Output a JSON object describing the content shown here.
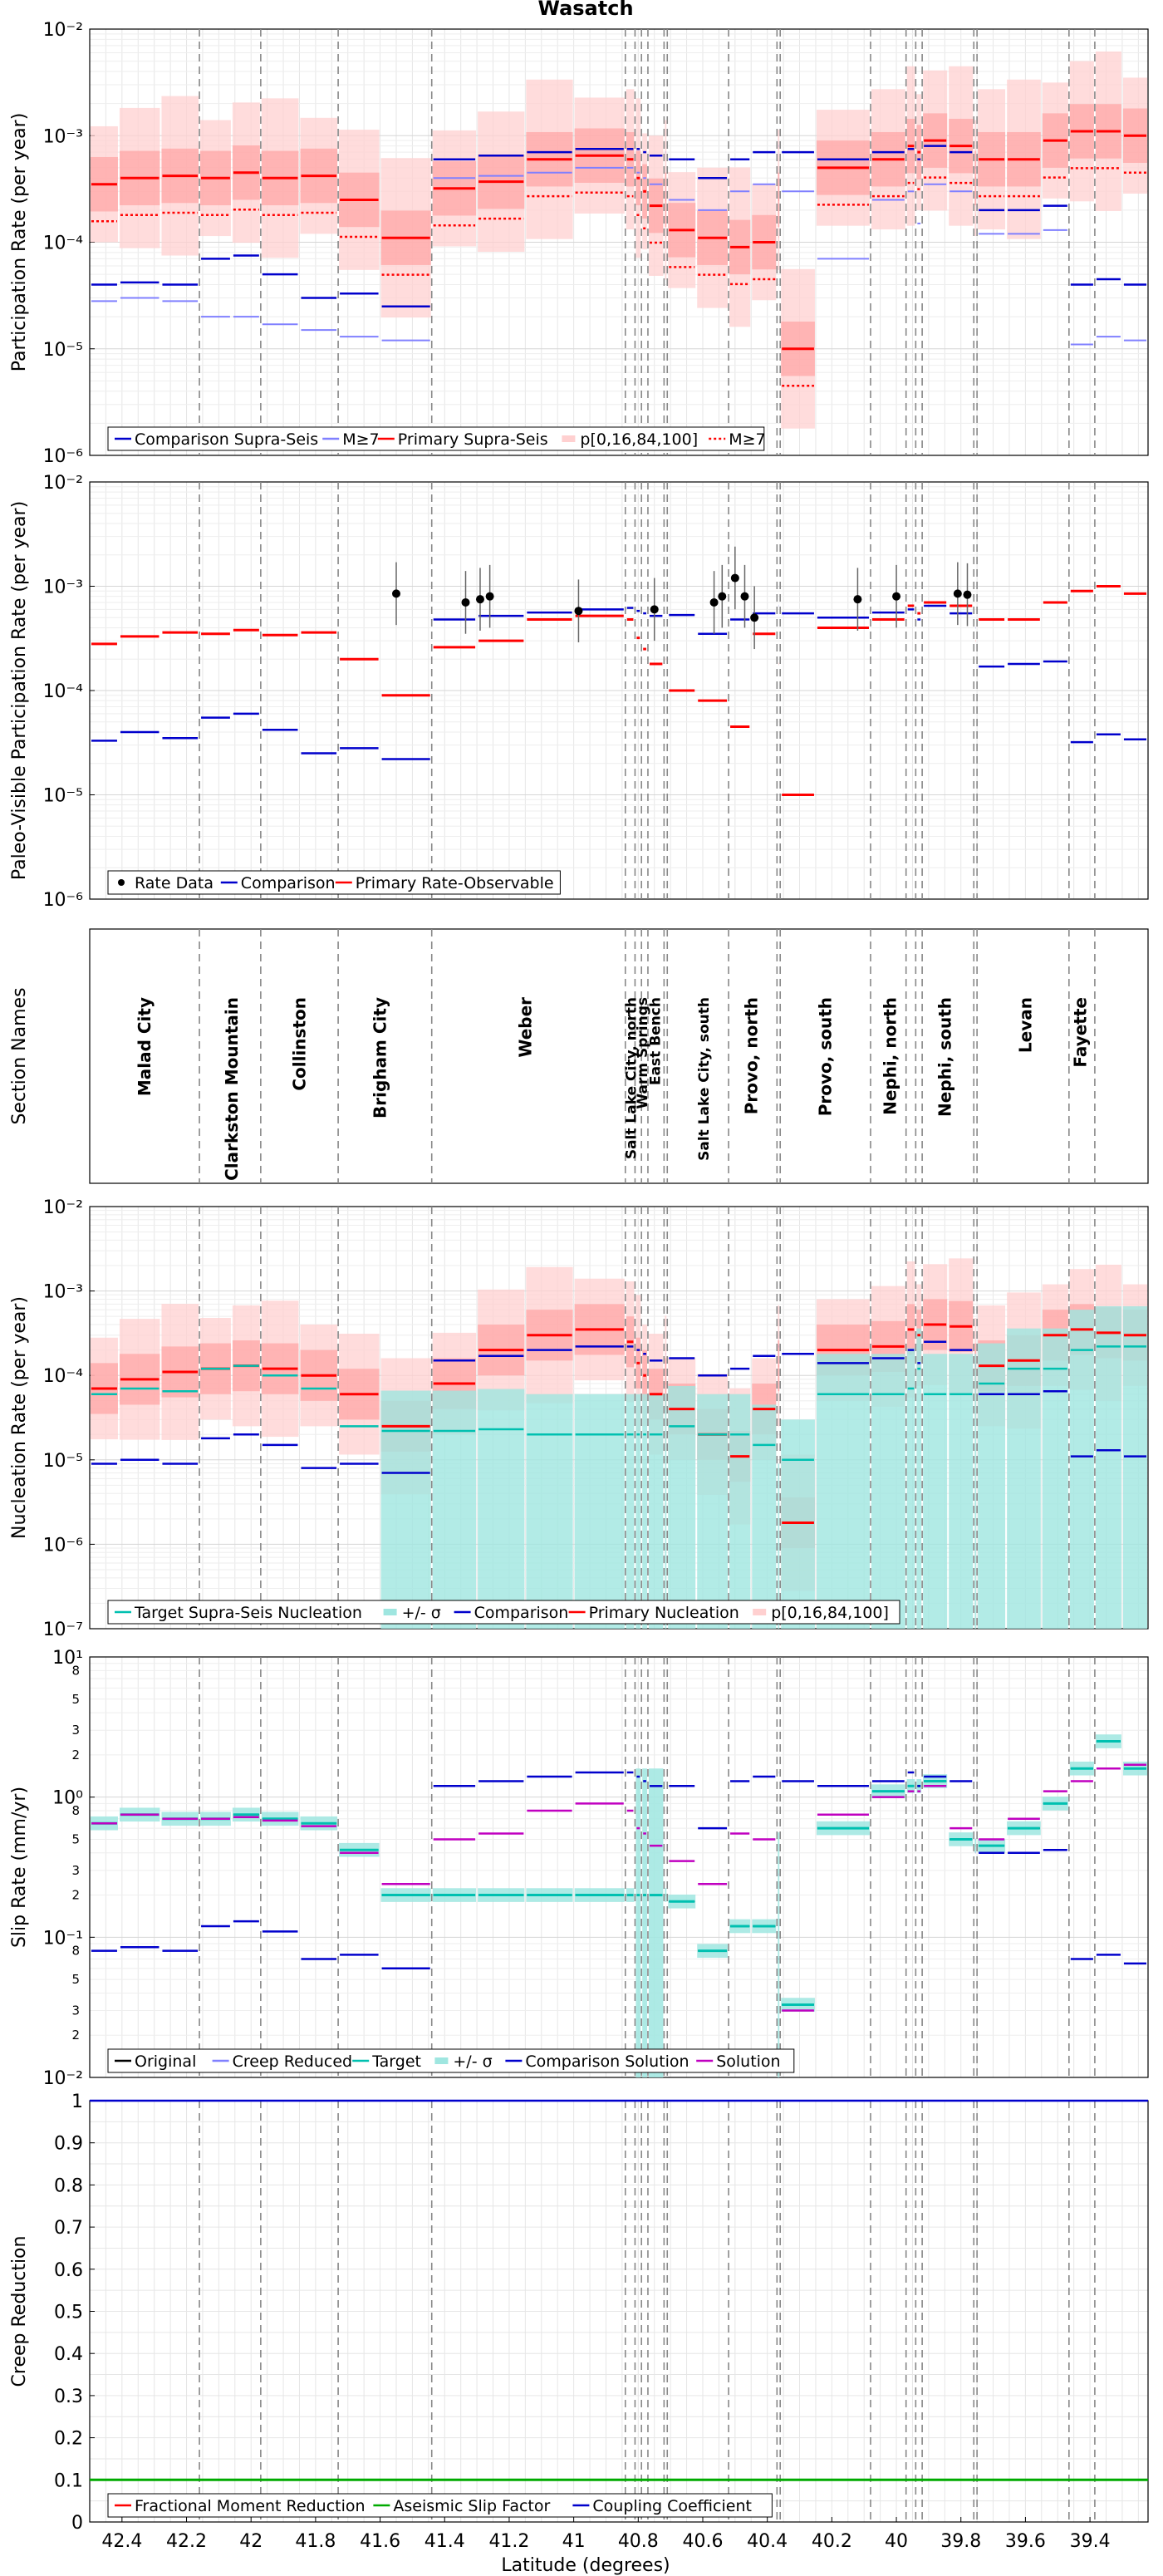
{
  "title": "Wasatch",
  "xlabel": "Latitude (degrees)",
  "xlim": [
    42.5,
    39.22
  ],
  "xticks": [
    42.4,
    42.2,
    42,
    41.8,
    41.6,
    41.4,
    41.2,
    41,
    40.8,
    40.6,
    40.4,
    40.2,
    40,
    39.8,
    39.6,
    39.4
  ],
  "section_boundaries": [
    42.16,
    41.97,
    41.73,
    41.44,
    40.84,
    40.81,
    40.79,
    40.77,
    40.72,
    40.71,
    40.52,
    40.37,
    40.36,
    40.08,
    39.97,
    39.94,
    39.92,
    39.76,
    39.75,
    39.465,
    39.385
  ],
  "section_names": [
    "Malad City",
    "Clarkston Mountain",
    "Collinston",
    "Brigham City",
    "Weber",
    "Salt Lake City, north",
    "Warm Springs",
    "East Bench",
    "Salt Lake City, south",
    "Provo, north",
    "Provo, south",
    "Nephi, north",
    "Nephi, south",
    "Levan",
    "Fayette"
  ],
  "colors": {
    "primary": "#ff0000",
    "comparison": "#0000cc",
    "comparison_m7": "#8080ff",
    "band_red_outer": "#ffd0d0",
    "band_red_inner": "#ffa3a3",
    "target": "#00c0b0",
    "target_band": "#9fe6e0",
    "solution": "#c000c0",
    "original": "#000000",
    "aseismic": "#00aa00",
    "coupling": "#0000cc",
    "grid": "#e6e6e6",
    "boundary": "#888888"
  },
  "chart_data": [
    {
      "id": "participation",
      "type": "line",
      "scale": "log",
      "ylabel": "Participation Rate (per year)",
      "ylim": [
        1e-06,
        0.01
      ],
      "ytick_labels": [
        "10⁻⁶",
        "10⁻⁵",
        "10⁻⁴",
        "10⁻³",
        "10⁻²"
      ],
      "legend_position": "bottom-left",
      "legend": [
        "Comparison Supra-Seis",
        "M≥7",
        "Primary Supra-Seis",
        "p[0,16,84,100]",
        "M≥7"
      ],
      "series": [
        {
          "name": "Comparison Supra-Seis",
          "values": [
            4e-05,
            4.2e-05,
            4e-05,
            7e-05,
            7.5e-05,
            5e-05,
            3e-05,
            3.3e-05,
            2.5e-05,
            0.0006,
            0.00065,
            0.0007,
            0.00075,
            0.00075,
            0.00075,
            0.0007,
            0.00065,
            0.0007,
            0.0006,
            0.0004,
            0.0006,
            0.0007,
            0.0008,
            0.0007,
            0.0006,
            0.0007,
            0.00075,
            0.0006,
            0.0008,
            0.0007,
            0.0005,
            0.0002,
            0.0002,
            0.00022,
            4e-05,
            4.5e-05,
            4e-05
          ]
        },
        {
          "name": "M≥7",
          "values": [
            2.8e-05,
            3e-05,
            2.8e-05,
            2e-05,
            2e-05,
            1.7e-05,
            1.5e-05,
            1.3e-05,
            1.2e-05,
            0.0004,
            0.00042,
            0.00045,
            0.0005,
            0.0005,
            0.00045,
            0.0004,
            0.00035,
            0.0003,
            0.00025,
            0.0002,
            0.0003,
            0.00035,
            0.0004,
            0.0003,
            7e-05,
            0.00025,
            0.0003,
            0.00015,
            0.00035,
            0.0003,
            0.00025,
            0.00012,
            0.00012,
            0.00013,
            1.1e-05,
            1.3e-05,
            1.2e-05
          ]
        },
        {
          "name": "Primary Supra-Seis",
          "values": [
            0.00035,
            0.0004,
            0.00042,
            0.0004,
            0.00045,
            0.0004,
            0.00042,
            0.00025,
            0.00011,
            0.00032,
            0.00037,
            0.0006,
            0.00065,
            0.0006,
            0.0004,
            0.0003,
            0.00022,
            0.00025,
            0.00013,
            0.00011,
            9e-05,
            0.0001,
            0.00025,
            1e-05,
            0.0005,
            0.0006,
            0.0008,
            0.0007,
            0.0009,
            0.0008,
            0.0004,
            0.0006,
            0.0006,
            0.0009,
            0.0011,
            0.0011,
            0.001
          ]
        }
      ]
    },
    {
      "id": "paleo",
      "type": "line",
      "scale": "log",
      "ylabel": "Paleo-Visible Participation Rate (per year)",
      "ylim": [
        1e-06,
        0.01
      ],
      "ytick_labels": [
        "10⁻⁶",
        "10⁻⁵",
        "10⁻⁴",
        "10⁻³",
        "10⁻²"
      ],
      "legend_position": "bottom-left",
      "legend": [
        "Rate Data",
        "Comparison",
        "Primary Rate-Observable"
      ],
      "rate_data": [
        {
          "x": 41.55,
          "y": 0.00085
        },
        {
          "x": 41.335,
          "y": 0.0007
        },
        {
          "x": 41.29,
          "y": 0.00075
        },
        {
          "x": 41.26,
          "y": 0.0008
        },
        {
          "x": 40.985,
          "y": 0.00058
        },
        {
          "x": 40.75,
          "y": 0.0006
        },
        {
          "x": 40.565,
          "y": 0.0007
        },
        {
          "x": 40.54,
          "y": 0.0008
        },
        {
          "x": 40.5,
          "y": 0.0012
        },
        {
          "x": 40.47,
          "y": 0.0008
        },
        {
          "x": 40.44,
          "y": 0.0005
        },
        {
          "x": 40.12,
          "y": 0.00075
        },
        {
          "x": 40.0,
          "y": 0.0008
        },
        {
          "x": 39.81,
          "y": 0.00085
        },
        {
          "x": 39.78,
          "y": 0.00083
        }
      ],
      "series": [
        {
          "name": "Comparison",
          "values": [
            3.3e-05,
            4e-05,
            3.5e-05,
            5.5e-05,
            6e-05,
            4.2e-05,
            2.5e-05,
            2.8e-05,
            2.2e-05,
            0.00048,
            0.00052,
            0.00056,
            0.0006,
            0.00062,
            0.00058,
            0.00055,
            0.00052,
            0.00056,
            0.00053,
            0.00035,
            0.00048,
            0.00055,
            0.00065,
            0.00055,
            0.0005,
            0.00056,
            0.0006,
            0.00048,
            0.00065,
            0.00055,
            0.0004,
            0.00017,
            0.00018,
            0.00019,
            3.2e-05,
            3.8e-05,
            3.4e-05
          ]
        },
        {
          "name": "Primary Rate-Observable",
          "values": [
            0.00028,
            0.00033,
            0.00036,
            0.00035,
            0.00038,
            0.00034,
            0.00036,
            0.0002,
            9e-05,
            0.00026,
            0.0003,
            0.00048,
            0.00052,
            0.00048,
            0.00032,
            0.00025,
            0.00018,
            0.0002,
            0.0001,
            8e-05,
            4.5e-05,
            0.00035,
            0.00018,
            1e-05,
            0.0004,
            0.00048,
            0.00065,
            0.00055,
            0.0007,
            0.00065,
            0.0003,
            0.00048,
            0.00048,
            0.0007,
            0.0009,
            0.001,
            0.00085
          ]
        }
      ]
    },
    {
      "id": "sections",
      "type": "table",
      "ylabel": "Section Names"
    },
    {
      "id": "nucleation",
      "type": "line",
      "scale": "log",
      "ylabel": "Nucleation Rate (per year)",
      "ylim": [
        1e-07,
        0.01
      ],
      "ytick_labels": [
        "10⁻⁷",
        "10⁻⁶",
        "10⁻⁵",
        "10⁻⁴",
        "10⁻³",
        "10⁻²"
      ],
      "legend_position": "bottom-left",
      "legend": [
        "Target Supra-Seis Nucleation",
        "+/- σ",
        "Comparison",
        "Primary Nucleation",
        "p[0,16,84,100]"
      ],
      "series": [
        {
          "name": "Comparison",
          "values": [
            9e-06,
            1e-05,
            9e-06,
            1.8e-05,
            2e-05,
            1.5e-05,
            8e-06,
            9e-06,
            7e-06,
            0.00015,
            0.00017,
            0.0002,
            0.00022,
            0.00022,
            0.0002,
            0.00018,
            0.00015,
            0.00018,
            0.00016,
            0.0001,
            0.00012,
            0.00017,
            0.00022,
            0.00018,
            0.00014,
            0.00016,
            0.0002,
            0.00014,
            0.00025,
            0.0002,
            0.00013,
            6e-05,
            6e-05,
            6.5e-05,
            1.1e-05,
            1.3e-05,
            1.1e-05
          ]
        },
        {
          "name": "Primary Nucleation",
          "values": [
            7e-05,
            9e-05,
            0.00011,
            0.00012,
            0.00013,
            0.00012,
            0.0001,
            6e-05,
            2.5e-05,
            8e-05,
            0.0002,
            0.0003,
            0.00035,
            0.00025,
            0.00014,
            0.0001,
            6e-05,
            8e-05,
            4e-05,
            2e-05,
            1.1e-05,
            4e-05,
            0.00013,
            1.8e-06,
            0.0002,
            0.00022,
            0.00035,
            0.0003,
            0.0004,
            0.00038,
            0.00012,
            0.00013,
            0.00015,
            0.0003,
            0.00035,
            0.00032,
            0.0003
          ]
        },
        {
          "name": "Target Supra-Seis Nucleation",
          "values": [
            6e-05,
            7e-05,
            6.5e-05,
            0.00012,
            0.00013,
            0.0001,
            7e-05,
            2.5e-05,
            2.2e-05,
            2.2e-05,
            2.3e-05,
            2e-05,
            2e-05,
            2e-05,
            2e-05,
            2e-05,
            2e-05,
            2e-05,
            2.5e-05,
            2e-05,
            2e-05,
            1.5e-05,
            3e-06,
            1e-05,
            6e-05,
            6e-05,
            7e-05,
            0.00012,
            6e-05,
            6e-05,
            6e-05,
            8e-05,
            0.00012,
            0.00012,
            0.0002,
            0.00022,
            0.00022
          ]
        }
      ]
    },
    {
      "id": "slip",
      "type": "line",
      "scale": "log",
      "ylabel": "Slip Rate (mm/yr)",
      "ylim": [
        0.01,
        10
      ],
      "ytick_labels": [
        "10⁻²",
        "10⁻¹",
        "10⁰",
        "10¹"
      ],
      "minor_tick_labels": [
        "2",
        "3",
        "5",
        "8"
      ],
      "legend_position": "bottom-left",
      "legend": [
        "Original",
        "Creep Reduced",
        "Target",
        "+/- σ",
        "Comparison Solution",
        "Solution"
      ],
      "series": [
        {
          "name": "Target",
          "values": [
            0.65,
            0.75,
            0.7,
            0.7,
            0.75,
            0.7,
            0.65,
            0.42,
            0.2,
            0.2,
            0.2,
            0.2,
            0.2,
            0.2,
            0.2,
            0.2,
            0.2,
            0.2,
            0.18,
            0.08,
            0.12,
            0.12,
            0.07,
            0.033,
            0.6,
            1.1,
            1.2,
            1.2,
            1.3,
            0.5,
            0.45,
            0.45,
            0.6,
            0.9,
            1.6,
            2.5,
            1.6
          ]
        },
        {
          "name": "Comparison Solution",
          "values": [
            0.08,
            0.085,
            0.08,
            0.12,
            0.13,
            0.11,
            0.07,
            0.075,
            0.06,
            1.2,
            1.3,
            1.4,
            1.5,
            1.5,
            1.4,
            1.3,
            1.2,
            1.3,
            1.2,
            0.6,
            1.3,
            1.4,
            1.5,
            1.3,
            1.2,
            1.3,
            1.5,
            1.2,
            1.4,
            1.3,
            0.4,
            0.4,
            0.4,
            0.42,
            0.07,
            0.075,
            0.065
          ]
        },
        {
          "name": "Solution",
          "values": [
            0.65,
            0.75,
            0.7,
            0.7,
            0.72,
            0.68,
            0.62,
            0.4,
            0.24,
            0.5,
            0.55,
            0.8,
            0.9,
            0.8,
            0.6,
            0.55,
            0.45,
            0.5,
            0.35,
            0.24,
            0.55,
            0.5,
            0.28,
            0.03,
            0.75,
            1.0,
            1.1,
            1.1,
            1.2,
            0.6,
            0.5,
            0.5,
            0.7,
            1.1,
            1.3,
            1.6,
            1.7
          ]
        }
      ]
    },
    {
      "id": "creep",
      "type": "line",
      "scale": "linear",
      "ylabel": "Creep Reduction",
      "ylim": [
        0,
        1
      ],
      "ytick_labels": [
        "0",
        "0.1",
        "0.2",
        "0.3",
        "0.4",
        "0.5",
        "0.6",
        "0.7",
        "0.8",
        "0.9",
        "1"
      ],
      "legend_position": "bottom-left",
      "legend": [
        "Fractional Moment Reduction",
        "Aseismic Slip Factor",
        "Coupling Coefficient"
      ],
      "series": [
        {
          "name": "Fractional Moment Reduction",
          "value": 0.1
        },
        {
          "name": "Aseismic Slip Factor",
          "value": 0.1
        },
        {
          "name": "Coupling Coefficient",
          "value": 1.0
        }
      ]
    }
  ]
}
